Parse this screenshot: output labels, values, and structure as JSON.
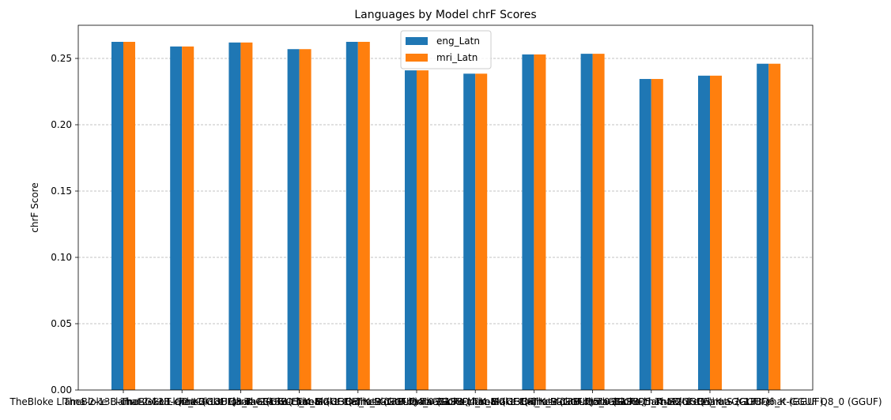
{
  "chart_data": {
    "type": "bar",
    "title": "Languages by Model chrF Scores",
    "xlabel": "",
    "ylabel": "chrF Score",
    "ylim": [
      0,
      0.275
    ],
    "yticks": [
      "0.00",
      "0.05",
      "0.10",
      "0.15",
      "0.20",
      "0.25"
    ],
    "ytick_values": [
      0,
      0.05,
      0.1,
      0.15,
      0.2,
      0.25
    ],
    "grid": "y-dashed",
    "legend_position": "top-center",
    "categories": [
      "TheBloke Llama-2-13B-chat-GGUF Q2_K (GGUF)",
      "TheBloke Llama-2-13B-chat-GGUF Q3_K_L (GGUF)",
      "TheBloke Llama-2-13B-chat-GGUF Q3_K_M (GGUF)",
      "TheBloke Llama-2-13B-chat-GGUF Q3_K_S (GGUF)",
      "TheBloke Llama-2-13B-chat-GGUF Q4_0 (GGUF)",
      "TheBloke Llama-2-13B-chat-GGUF Q4_K_M (GGUF)",
      "TheBloke Llama-2-13B-chat-GGUF Q4_K_S (GGUF)",
      "TheBloke Llama-2-13B-chat-GGUF Q5_0 (GGUF)",
      "TheBloke Llama-2-13B-chat-GGUF Q5_K_M (GGUF)",
      "TheBloke Llama-2-13B-chat-GGUF Q5_K_S (GGUF)",
      "TheBloke Llama-2-13B-chat-GGUF Q6_K (GGUF)",
      "TheBloke Llama-2-13B-chat-GGUF Q8_0 (GGUF)"
    ],
    "series": [
      {
        "name": "eng_Latn",
        "color": "#1f77b4",
        "values": [
          0.2625,
          0.259,
          0.262,
          0.257,
          0.2625,
          0.241,
          0.2385,
          0.253,
          0.2535,
          0.2345,
          0.237,
          0.246
        ]
      },
      {
        "name": "mri_Latn",
        "color": "#ff7f0e",
        "values": [
          0.2625,
          0.259,
          0.262,
          0.257,
          0.2625,
          0.241,
          0.2385,
          0.253,
          0.2535,
          0.2345,
          0.237,
          0.246
        ]
      }
    ]
  }
}
